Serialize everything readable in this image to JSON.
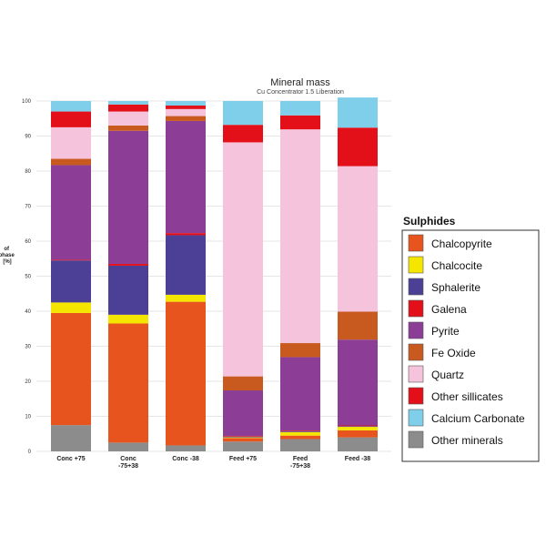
{
  "chart_data": {
    "type": "bar",
    "stacked": true,
    "title": "Mineral mass",
    "subtitle": "Cu Concentrator 1.5 Liberation",
    "ylabel_lines": [
      "of",
      "phase",
      "[%]"
    ],
    "ylim": [
      0,
      100
    ],
    "yticks": [
      0,
      10,
      20,
      30,
      40,
      50,
      60,
      70,
      80,
      90,
      100
    ],
    "grid": true,
    "categories": [
      [
        "Conc +75"
      ],
      [
        "Conc",
        "-75+38"
      ],
      [
        "Conc -38"
      ],
      [
        "Feed +75"
      ],
      [
        "Feed",
        "-75+38"
      ],
      [
        "Feed -38"
      ]
    ],
    "legend": {
      "title": "Sulphides",
      "position": "right"
    },
    "series": [
      {
        "name": "Other minerals",
        "color": "#8c8c8c",
        "values": [
          7.5,
          2.5,
          1.7,
          2.8,
          3.5,
          4.0
        ]
      },
      {
        "name": "Chalcopyrite",
        "color": "#e8541e",
        "values": [
          32.0,
          34.0,
          41.0,
          1.0,
          1.0,
          2.0
        ]
      },
      {
        "name": "Chalcocite",
        "color": "#f5e600",
        "values": [
          3.0,
          2.5,
          2.0,
          0.2,
          1.0,
          1.0
        ]
      },
      {
        "name": "Sphalerite",
        "color": "#4b3f96",
        "values": [
          12.0,
          14.0,
          17.0,
          0.2,
          0.2,
          0.2
        ]
      },
      {
        "name": "Galena",
        "color": "#e3101a",
        "values": [
          0.2,
          0.5,
          0.6,
          0.2,
          0.2,
          0.2
        ]
      },
      {
        "name": "Pyrite",
        "color": "#8c3d96",
        "values": [
          27.0,
          38.0,
          32.0,
          13.0,
          21.0,
          24.5
        ]
      },
      {
        "name": "Fe Oxide",
        "color": "#c85a1f",
        "values": [
          1.8,
          1.5,
          1.4,
          4.0,
          4.0,
          8.0
        ]
      },
      {
        "name": "Quartz",
        "color": "#f5c4dc",
        "values": [
          9.0,
          4.0,
          2.0,
          66.8,
          61.0,
          41.5
        ]
      },
      {
        "name": "Other sillicates",
        "color": "#e3101a",
        "values": [
          4.5,
          2.0,
          1.0,
          5.0,
          4.0,
          11.0
        ]
      },
      {
        "name": "Calcium Carbonate",
        "color": "#7fcfeb",
        "values": [
          3.0,
          1.0,
          1.3,
          6.8,
          4.1,
          8.6
        ]
      }
    ],
    "legend_order": [
      "Chalcopyrite",
      "Chalcocite",
      "Sphalerite",
      "Galena",
      "Pyrite",
      "Fe Oxide",
      "Quartz",
      "Other sillicates",
      "Calcium Carbonate",
      "Other minerals"
    ]
  }
}
